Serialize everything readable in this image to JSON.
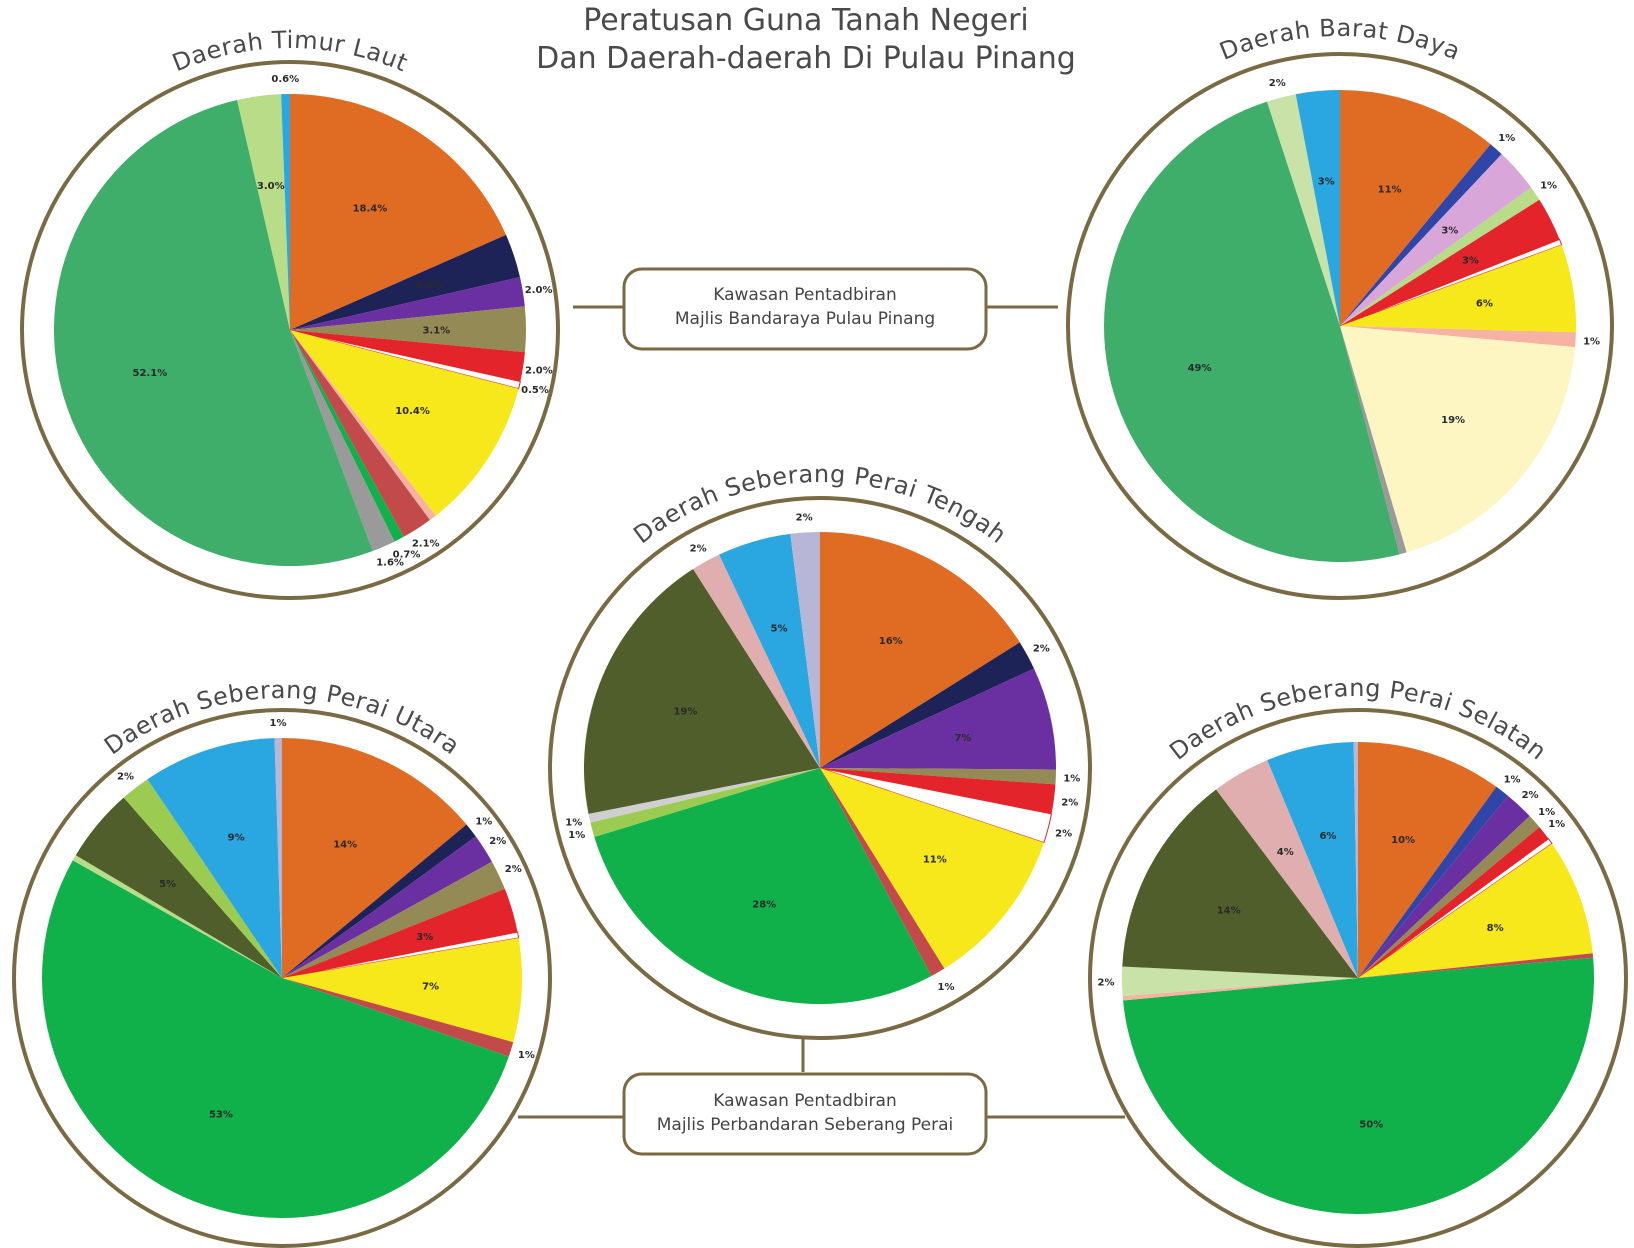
{
  "title": {
    "line1": "Peratusan Guna Tanah Negeri",
    "line2": "Dan Daerah-daerah Di Pulau Pinang"
  },
  "boxes": {
    "mbpp": {
      "line1": "Kawasan Pentadbiran",
      "line2": "Majlis Bandaraya Pulau Pinang"
    },
    "mpsp": {
      "line1": "Kawasan Pentadbiran",
      "line2": "Majlis Perbandaran Seberang Perai"
    }
  },
  "colors": {
    "orange": "#e06c24",
    "navy": "#1e2357",
    "blue": "#2f45a8",
    "purple": "#6a2fa0",
    "pink": "#d9a6d9",
    "olive": "#948a55",
    "red": "#e3242b",
    "white": "#ffffff",
    "yellow": "#f6e81a",
    "salmon": "#f6b3a3",
    "cream": "#fdf6c3",
    "brick": "#c34a4a",
    "green": "#10b04a",
    "gray": "#9a9a9a",
    "seagreen": "#3fae6a",
    "lightgreen": "#b9dc88",
    "palegreen": "#c8e2a8",
    "yellowgreen": "#9ccb52",
    "darkolive": "#4f5e2a",
    "rose": "#e0aeae",
    "sky": "#2aa6e0",
    "lavender": "#b8b6d6",
    "ltgray": "#cfcfcf"
  },
  "chart_data": [
    {
      "id": "timur-laut",
      "type": "pie",
      "title": "Daerah Timur Laut",
      "slices": [
        {
          "value": 18.4,
          "label": "18.4%",
          "color": "orange"
        },
        {
          "value": 3.0,
          "label": "3.0%",
          "color": "navy"
        },
        {
          "value": 2.0,
          "label": "2.0%",
          "color": "purple"
        },
        {
          "value": 3.1,
          "label": "3.1%",
          "color": "olive"
        },
        {
          "value": 2.0,
          "label": "2.0%",
          "color": "red"
        },
        {
          "value": 0.5,
          "label": "0.5%",
          "color": "white"
        },
        {
          "value": 10.4,
          "label": "10.4%",
          "color": "yellow"
        },
        {
          "value": 0.5,
          "label": "",
          "color": "salmon"
        },
        {
          "value": 2.1,
          "label": "2.1%",
          "color": "brick"
        },
        {
          "value": 0.7,
          "label": "0.7%",
          "color": "green"
        },
        {
          "value": 1.6,
          "label": "1.6%",
          "color": "gray"
        },
        {
          "value": 52.1,
          "label": "52.1%",
          "color": "seagreen"
        },
        {
          "value": 3.0,
          "label": "3.0%",
          "color": "lightgreen"
        },
        {
          "value": 0.6,
          "label": "0.6%",
          "color": "sky"
        }
      ]
    },
    {
      "id": "barat-daya",
      "type": "pie",
      "title": "Daerah Barat Daya",
      "slices": [
        {
          "value": 11,
          "label": "11%",
          "color": "orange"
        },
        {
          "value": 1,
          "label": "1%",
          "color": "blue"
        },
        {
          "value": 3,
          "label": "3%",
          "color": "pink"
        },
        {
          "value": 1,
          "label": "1%",
          "color": "lightgreen"
        },
        {
          "value": 3,
          "label": "3%",
          "color": "red"
        },
        {
          "value": 0.4,
          "label": "",
          "color": "white"
        },
        {
          "value": 6,
          "label": "6%",
          "color": "yellow"
        },
        {
          "value": 1,
          "label": "1%",
          "color": "salmon"
        },
        {
          "value": 19,
          "label": "19%",
          "color": "cream"
        },
        {
          "value": 0.5,
          "label": "",
          "color": "gray"
        },
        {
          "value": 49,
          "label": "49%",
          "color": "seagreen"
        },
        {
          "value": 2,
          "label": "2%",
          "color": "palegreen"
        },
        {
          "value": 3,
          "label": "3%",
          "color": "sky"
        }
      ]
    },
    {
      "id": "spt",
      "type": "pie",
      "title": "Daerah Seberang Perai Tengah",
      "slices": [
        {
          "value": 16,
          "label": "16%",
          "color": "orange"
        },
        {
          "value": 2,
          "label": "2%",
          "color": "navy"
        },
        {
          "value": 7,
          "label": "7%",
          "color": "purple"
        },
        {
          "value": 1,
          "label": "1%",
          "color": "olive"
        },
        {
          "value": 2,
          "label": "2%",
          "color": "red"
        },
        {
          "value": 2,
          "label": "2%",
          "color": "white"
        },
        {
          "value": 11,
          "label": "11%",
          "color": "yellow"
        },
        {
          "value": 1,
          "label": "1%",
          "color": "brick"
        },
        {
          "value": 28,
          "label": "28%",
          "color": "green"
        },
        {
          "value": 1,
          "label": "1%",
          "color": "yellowgreen"
        },
        {
          "value": 0.6,
          "label": "1%",
          "color": "ltgray"
        },
        {
          "value": 19,
          "label": "19%",
          "color": "darkolive"
        },
        {
          "value": 2,
          "label": "2%",
          "color": "rose"
        },
        {
          "value": 5,
          "label": "5%",
          "color": "sky"
        },
        {
          "value": 2,
          "label": "2%",
          "color": "lavender"
        }
      ]
    },
    {
      "id": "spu",
      "type": "pie",
      "title": "Daerah Seberang Perai Utara",
      "slices": [
        {
          "value": 14,
          "label": "14%",
          "color": "orange"
        },
        {
          "value": 1,
          "label": "1%",
          "color": "navy"
        },
        {
          "value": 2,
          "label": "2%",
          "color": "purple"
        },
        {
          "value": 2,
          "label": "2%",
          "color": "olive"
        },
        {
          "value": 3,
          "label": "3%",
          "color": "red"
        },
        {
          "value": 0.4,
          "label": "",
          "color": "white"
        },
        {
          "value": 7,
          "label": "7%",
          "color": "yellow"
        },
        {
          "value": 1,
          "label": "1%",
          "color": "brick"
        },
        {
          "value": 53,
          "label": "53%",
          "color": "green"
        },
        {
          "value": 0.4,
          "label": "",
          "color": "lightgreen"
        },
        {
          "value": 5,
          "label": "5%",
          "color": "darkolive"
        },
        {
          "value": 2,
          "label": "2%",
          "color": "yellowgreen"
        },
        {
          "value": 9,
          "label": "9%",
          "color": "sky"
        },
        {
          "value": 0.5,
          "label": "1%",
          "color": "lavender"
        }
      ]
    },
    {
      "id": "sps",
      "type": "pie",
      "title": "Daerah Seberang Perai Selatan",
      "slices": [
        {
          "value": 10,
          "label": "10%",
          "color": "orange"
        },
        {
          "value": 1,
          "label": "1%",
          "color": "blue"
        },
        {
          "value": 2,
          "label": "2%",
          "color": "purple"
        },
        {
          "value": 1,
          "label": "1%",
          "color": "olive"
        },
        {
          "value": 1,
          "label": "1%",
          "color": "red"
        },
        {
          "value": 0.4,
          "label": "",
          "color": "white"
        },
        {
          "value": 8,
          "label": "8%",
          "color": "yellow"
        },
        {
          "value": 0.3,
          "label": "",
          "color": "brick"
        },
        {
          "value": 50,
          "label": "50%",
          "color": "green"
        },
        {
          "value": 0.3,
          "label": "",
          "color": "salmon"
        },
        {
          "value": 2,
          "label": "2%",
          "color": "palegreen"
        },
        {
          "value": 14,
          "label": "14%",
          "color": "darkolive"
        },
        {
          "value": 4,
          "label": "4%",
          "color": "rose"
        },
        {
          "value": 6,
          "label": "6%",
          "color": "sky"
        },
        {
          "value": 0.3,
          "label": "",
          "color": "lavender"
        }
      ]
    }
  ]
}
